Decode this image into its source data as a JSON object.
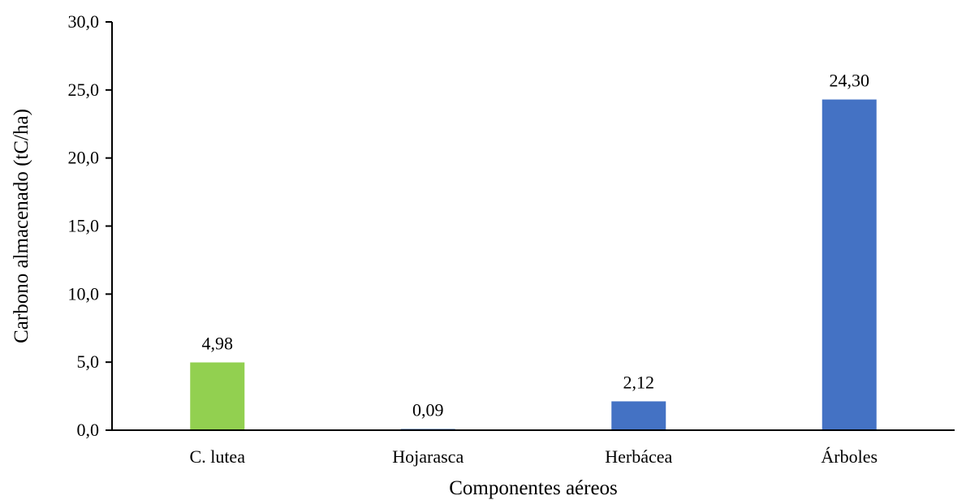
{
  "chart_data": {
    "type": "bar",
    "title": "",
    "xlabel": "Componentes aéreos",
    "ylabel": "Carbono almacenado (tC/ha)",
    "ylim": [
      0,
      30
    ],
    "ytick_step": 5,
    "yticks": [
      "0,0",
      "5,0",
      "10,0",
      "15,0",
      "20,0",
      "25,0",
      "30,0"
    ],
    "categories": [
      "C. lutea",
      "Hojarasca",
      "Herbácea",
      "Árboles"
    ],
    "values": [
      4.98,
      0.09,
      2.12,
      24.3
    ],
    "data_labels": [
      "4,98",
      "0,09",
      "2,12",
      "24,30"
    ],
    "bar_colors": [
      "#92d050",
      "#4472c4",
      "#4472c4",
      "#4472c4"
    ],
    "grid": false,
    "legend": "none"
  }
}
